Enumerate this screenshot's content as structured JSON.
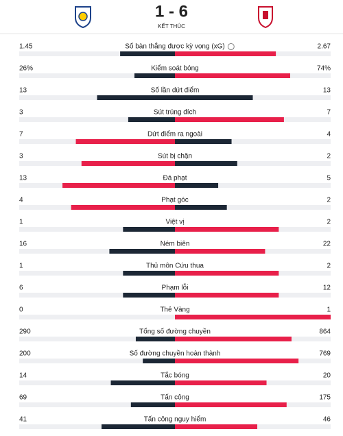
{
  "header": {
    "score": "1 - 6",
    "status": "KẾT THÚC"
  },
  "colors": {
    "higher": "#e8204a",
    "lower": "#1c2735",
    "track": "#eeeff2"
  },
  "stats": {
    "rows": [
      {
        "label": "Số bàn thắng được kỳ vọng (xG)",
        "home": 1.45,
        "away": 2.67
      },
      {
        "label": "Kiểm soát bóng",
        "home": 26,
        "away": 74,
        "home_label": "26%",
        "away_label": "74%"
      },
      {
        "label": "Số lần dứt điểm",
        "home": 13,
        "away": 13
      },
      {
        "label": "Sút trúng đích",
        "home": 3,
        "away": 7
      },
      {
        "label": "Dứt điểm ra ngoài",
        "home": 7,
        "away": 4
      },
      {
        "label": "Sút bị chặn",
        "home": 3,
        "away": 2
      },
      {
        "label": "Đá phạt",
        "home": 13,
        "away": 5
      },
      {
        "label": "Phạt góc",
        "home": 4,
        "away": 2
      },
      {
        "label": "Việt vị",
        "home": 1,
        "away": 2
      },
      {
        "label": "Ném biên",
        "home": 16,
        "away": 22
      },
      {
        "label": "Thủ môn Cứu thua",
        "home": 1,
        "away": 2
      },
      {
        "label": "Phạm lỗi",
        "home": 6,
        "away": 12
      },
      {
        "label": "Thẻ Vàng",
        "home": 0,
        "away": 1
      },
      {
        "label": "Tổng số đường chuyền",
        "home": 290,
        "away": 864
      },
      {
        "label": "Số đường chuyền hoàn thành",
        "home": 200,
        "away": 769
      },
      {
        "label": "Tắc bóng",
        "home": 14,
        "away": 20
      },
      {
        "label": "Tấn công",
        "home": 69,
        "away": 175
      },
      {
        "label": "Tấn công nguy hiểm",
        "home": 41,
        "away": 46
      }
    ]
  }
}
